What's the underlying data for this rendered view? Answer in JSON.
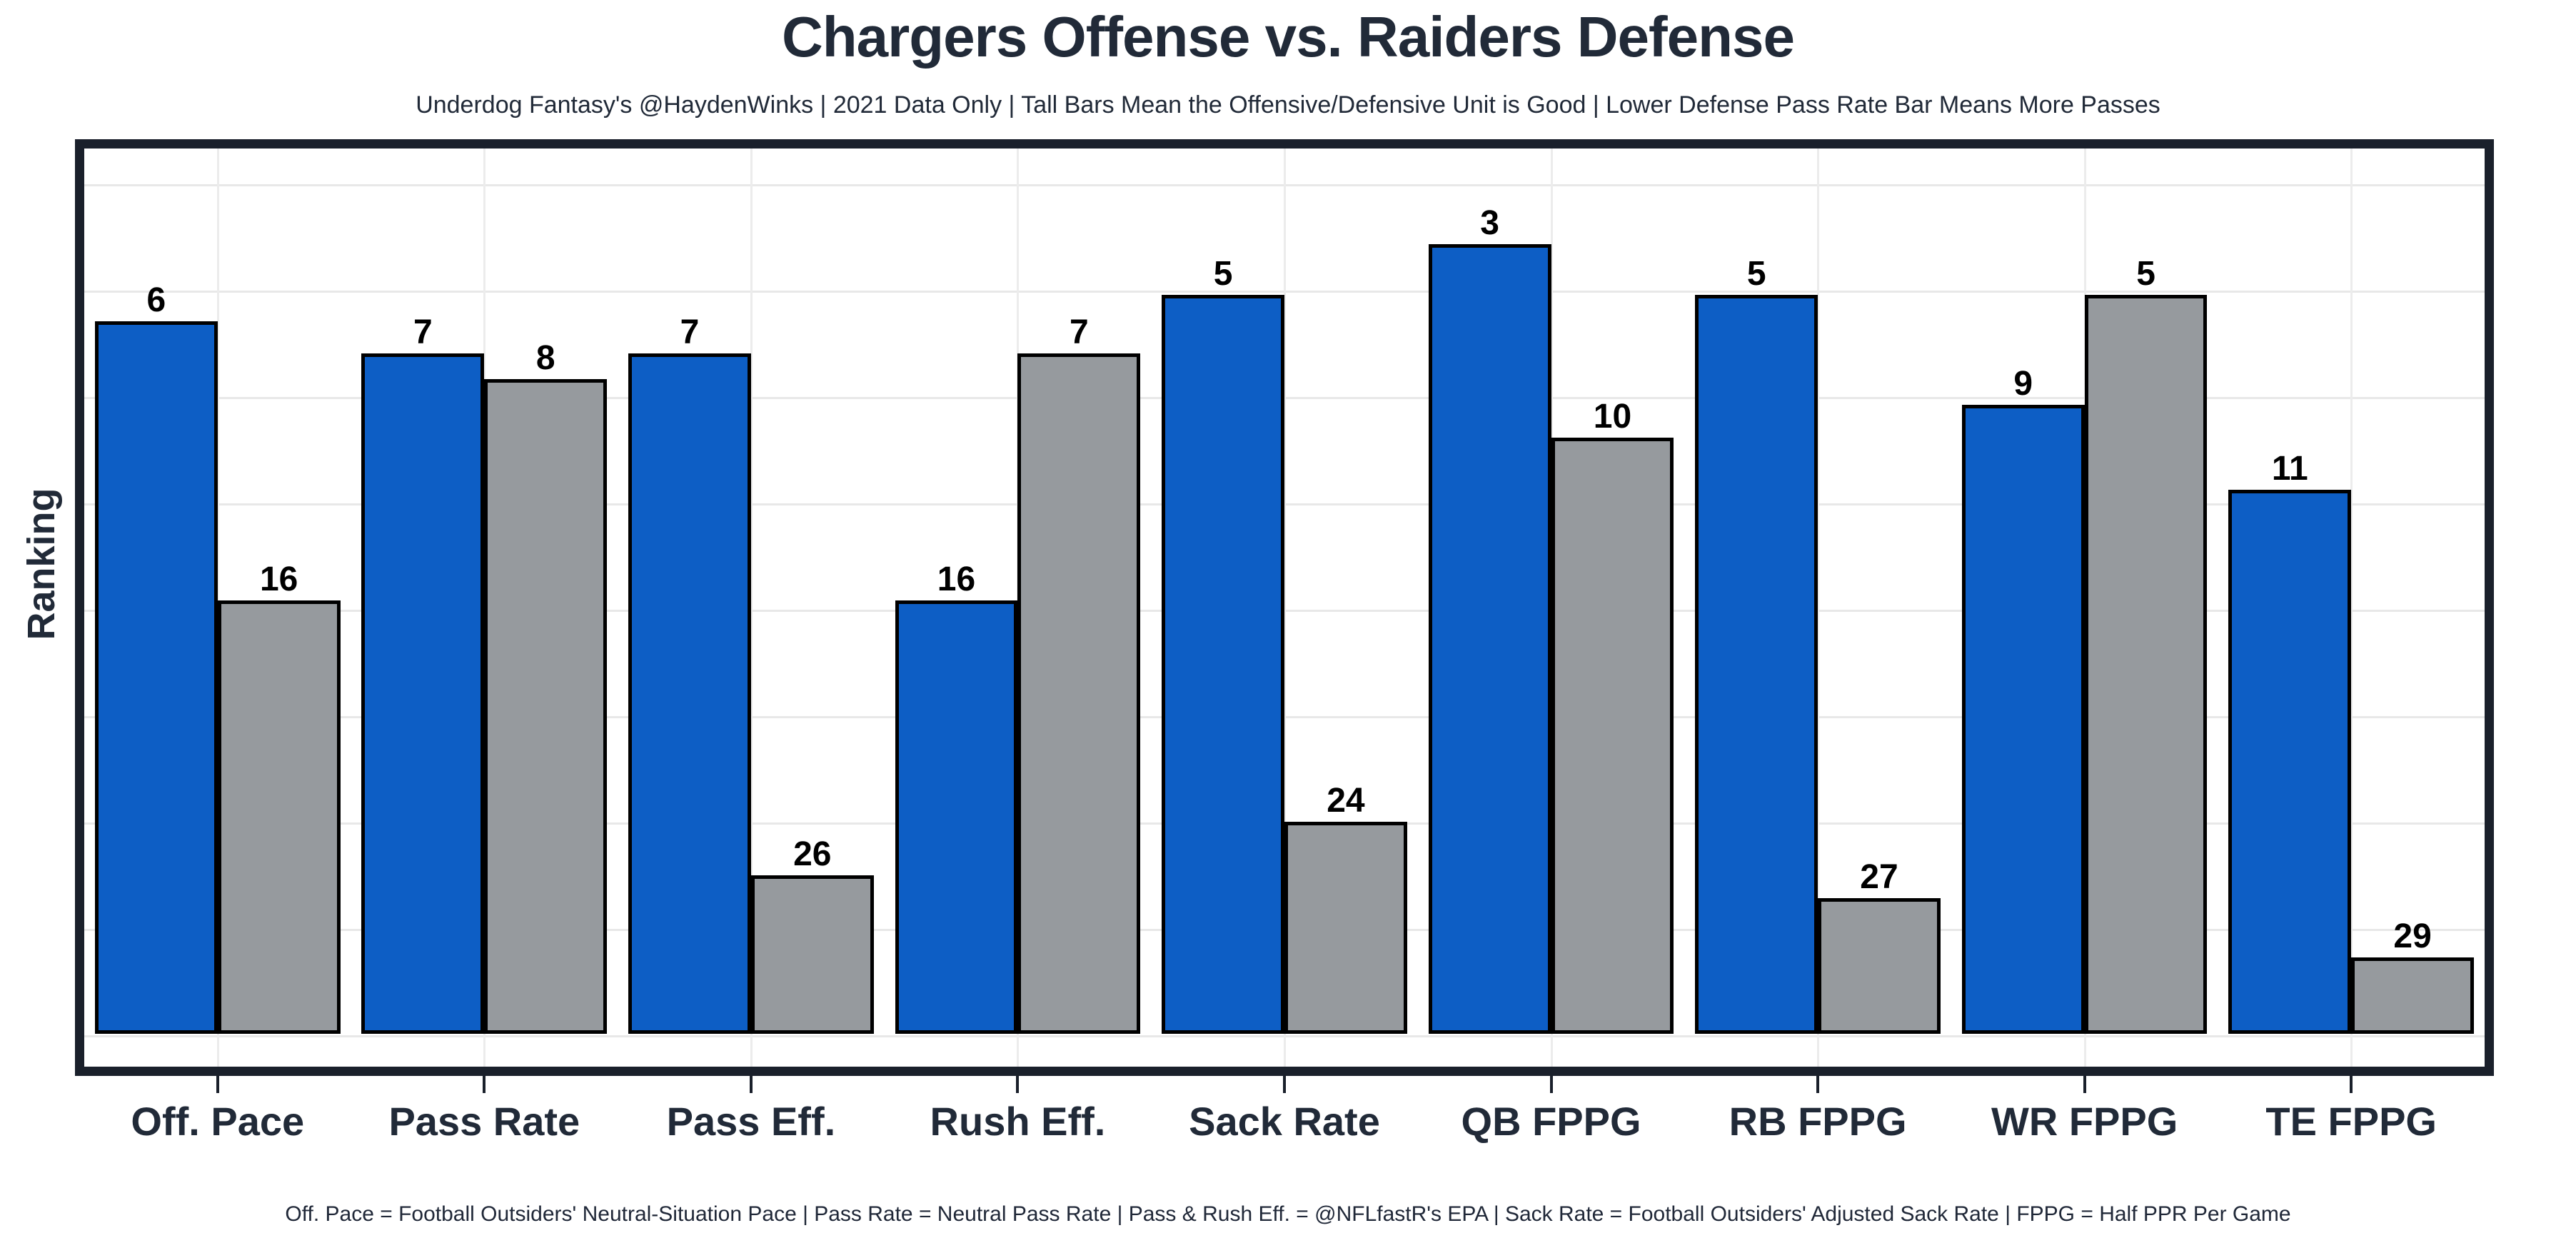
{
  "header": {
    "title": "Chargers Offense vs. Raiders Defense",
    "subtitle": "Underdog Fantasy's @HaydenWinks | 2021 Data Only | Tall Bars Mean the Offensive/Defensive Unit is Good | Lower Defense Pass Rate Bar Means More Passes"
  },
  "footer": {
    "note": "Off. Pace = Football Outsiders' Neutral-Situation Pace | Pass Rate = Neutral Pass Rate | Pass & Rush Eff. = @NFLfastR's EPA | Sack Rate = Football Outsiders' Adjusted Sack Rate | FPPG = Half PPR Per Game"
  },
  "chart_data": {
    "type": "bar",
    "title": "Chargers Offense vs. Raiders Defense",
    "ylabel": "Ranking",
    "xlabel": "",
    "categories": [
      "Off. Pace",
      "Pass Rate",
      "Pass Eff.",
      "Rush Eff.",
      "Sack Rate",
      "QB FPPG",
      "RB FPPG",
      "WR FPPG",
      "TE FPPG"
    ],
    "series": [
      {
        "name": "Chargers Offense",
        "color": "#0d5ec5",
        "values": [
          6,
          7,
          7,
          16,
          5,
          3,
          5,
          9,
          11
        ]
      },
      {
        "name": "Raiders Defense",
        "color": "#969a9e",
        "values": [
          16,
          8,
          26,
          7,
          24,
          10,
          27,
          5,
          29
        ]
      }
    ],
    "value_semantics": "NFL ranking, 1 = best; taller bar = better rank",
    "legend_position": "none",
    "grid": true,
    "bar_outline_color": "#000000",
    "frame_color": "#1a202b",
    "background_color": "#ffffff"
  }
}
